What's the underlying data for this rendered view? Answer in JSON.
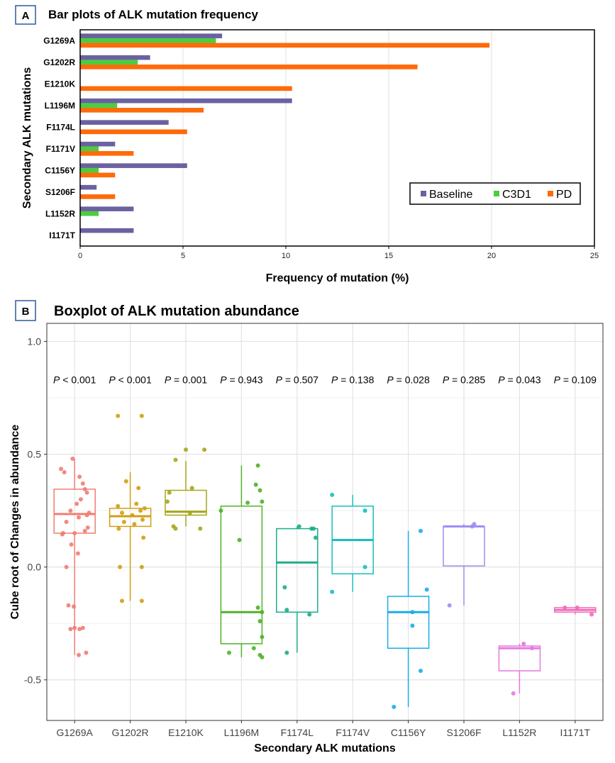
{
  "panel_a": {
    "badge": "A",
    "title": "Bar plots of ALK mutation frequency"
  },
  "panel_b": {
    "badge": "B",
    "title": "Boxplot of ALK mutation abundance"
  },
  "colors": {
    "baseline": "#6a62a0",
    "c3d1": "#4ccc40",
    "pd": "#ff6a0a",
    "badge_border": "#2c5a9e",
    "grid": "#e5e5e5",
    "panel_bg": "#ffffff"
  },
  "chart_data": [
    {
      "type": "bar",
      "orientation": "horizontal",
      "title": "Bar plots of ALK mutation frequency",
      "xlabel": "Frequency of mutation (%)",
      "ylabel": "Secondary ALK mutations",
      "xlim": [
        0,
        25
      ],
      "xticks": [
        0,
        5,
        10,
        15,
        20,
        25
      ],
      "grid": true,
      "legend_position": "bottom-right",
      "categories": [
        "G1269A",
        "G1202R",
        "E1210K",
        "L1196M",
        "F1174L",
        "F1171V",
        "C1156Y",
        "S1206F",
        "L1152R",
        "I1171T"
      ],
      "series": [
        {
          "name": "Baseline",
          "color": "#6a62a0",
          "values": [
            6.9,
            3.4,
            0,
            10.3,
            4.3,
            1.7,
            5.2,
            0.8,
            2.6,
            2.6
          ]
        },
        {
          "name": "C3D1",
          "color": "#4ccc40",
          "values": [
            6.6,
            2.8,
            0,
            1.8,
            0,
            0.9,
            0.9,
            0,
            0.9,
            0
          ]
        },
        {
          "name": "PD",
          "color": "#ff6a0a",
          "values": [
            19.9,
            16.4,
            10.3,
            6.0,
            5.2,
            2.6,
            1.7,
            1.7,
            0,
            0
          ]
        }
      ]
    },
    {
      "type": "box",
      "title": "Boxplot of ALK mutation abundance",
      "xlabel": "Secondary ALK mutations",
      "ylabel": "Cube root of Changes in abundance",
      "ylim": [
        -0.68,
        1.08
      ],
      "yticks": [
        -0.5,
        0.0,
        0.5,
        1.0
      ],
      "ytick_labels": [
        "-0.5",
        "0.0",
        "0.5",
        "1.0"
      ],
      "grid": true,
      "categories": [
        "G1269A",
        "G1202R",
        "E1210K",
        "L1196M",
        "F1174L",
        "F1174V",
        "C1156Y",
        "S1206F",
        "L1152R",
        "I1171T"
      ],
      "p_values": [
        "P < 0.001",
        "P < 0.001",
        "P = 0.001",
        "P = 0.943",
        "P = 0.507",
        "P = 0.138",
        "P = 0.028",
        "P = 0.285",
        "P = 0.043",
        "P = 0.109"
      ],
      "boxes": [
        {
          "name": "G1269A",
          "color": "#f07d74",
          "min": -0.39,
          "q1": 0.15,
          "median": 0.235,
          "q3": 0.345,
          "max": 0.48,
          "points": [
            [
              -0.33,
              0.435
            ],
            [
              -0.25,
              0.42
            ],
            [
              -0.28,
              0.15
            ],
            [
              -0.3,
              0.145
            ],
            [
              -0.05,
              0.48
            ],
            [
              0.12,
              0.4
            ],
            [
              0.2,
              0.37
            ],
            [
              0.25,
              0.345
            ],
            [
              0.3,
              0.33
            ],
            [
              0.15,
              0.3
            ],
            [
              0.05,
              0.28
            ],
            [
              -0.1,
              0.25
            ],
            [
              0.35,
              0.24
            ],
            [
              0.3,
              0.23
            ],
            [
              0.1,
              0.22
            ],
            [
              -0.2,
              0.2
            ],
            [
              0.32,
              0.175
            ],
            [
              0.25,
              0.16
            ],
            [
              0.0,
              0.15
            ],
            [
              -0.08,
              0.1
            ],
            [
              0.08,
              0.06
            ],
            [
              -0.15,
              -0.17
            ],
            [
              -0.02,
              -0.175
            ],
            [
              -0.1,
              -0.275
            ],
            [
              0.0,
              -0.27
            ],
            [
              0.12,
              -0.275
            ],
            [
              0.2,
              -0.27
            ],
            [
              -0.2,
              0.0
            ],
            [
              0.28,
              -0.38
            ],
            [
              0.1,
              -0.39
            ]
          ]
        },
        {
          "name": "G1202R",
          "color": "#d19f12",
          "min": -0.15,
          "q1": 0.18,
          "median": 0.225,
          "q3": 0.26,
          "max": 0.42,
          "points": [
            [
              -0.3,
              0.67
            ],
            [
              0.28,
              0.67
            ],
            [
              -0.1,
              0.38
            ],
            [
              0.2,
              0.35
            ],
            [
              -0.3,
              0.27
            ],
            [
              0.15,
              0.28
            ],
            [
              0.35,
              0.26
            ],
            [
              0.25,
              0.25
            ],
            [
              -0.2,
              0.24
            ],
            [
              0.05,
              0.23
            ],
            [
              0.3,
              0.21
            ],
            [
              -0.15,
              0.2
            ],
            [
              0.1,
              0.19
            ],
            [
              -0.28,
              0.17
            ],
            [
              0.32,
              0.13
            ],
            [
              0.28,
              0.0
            ],
            [
              -0.25,
              0.0
            ],
            [
              -0.2,
              -0.15
            ],
            [
              0.28,
              -0.15
            ]
          ]
        },
        {
          "name": "E1210K",
          "color": "#a6a619",
          "min": 0.18,
          "q1": 0.23,
          "median": 0.245,
          "q3": 0.34,
          "max": 0.47,
          "points": [
            [
              0.0,
              0.52
            ],
            [
              0.45,
              0.52
            ],
            [
              -0.25,
              0.475
            ],
            [
              -0.4,
              0.33
            ],
            [
              0.15,
              0.35
            ],
            [
              0.35,
              0.17
            ],
            [
              -0.3,
              0.18
            ],
            [
              -0.25,
              0.17
            ],
            [
              0.1,
              0.24
            ],
            [
              -0.45,
              0.29
            ]
          ]
        },
        {
          "name": "L1196M",
          "color": "#4fb327",
          "min": -0.4,
          "q1": -0.34,
          "median": -0.2,
          "q3": 0.27,
          "max": 0.45,
          "points": [
            [
              0.4,
              0.45
            ],
            [
              0.35,
              0.365
            ],
            [
              0.15,
              0.285
            ],
            [
              0.5,
              0.29
            ],
            [
              0.45,
              0.34
            ],
            [
              -0.5,
              0.25
            ],
            [
              -0.05,
              0.12
            ],
            [
              0.4,
              -0.18
            ],
            [
              0.5,
              -0.2
            ],
            [
              0.45,
              -0.24
            ],
            [
              0.5,
              -0.31
            ],
            [
              0.3,
              -0.36
            ],
            [
              0.45,
              -0.39
            ],
            [
              0.5,
              -0.4
            ],
            [
              -0.3,
              -0.38
            ]
          ]
        },
        {
          "name": "F1174L",
          "color": "#1cad8a",
          "min": -0.38,
          "q1": -0.2,
          "median": 0.02,
          "q3": 0.17,
          "max": 0.18,
          "points": [
            [
              -0.3,
              -0.09
            ],
            [
              -0.25,
              -0.19
            ],
            [
              0.4,
              0.17
            ],
            [
              0.45,
              0.13
            ],
            [
              0.3,
              -0.21
            ],
            [
              -0.25,
              -0.38
            ],
            [
              0.35,
              0.17
            ],
            [
              0.05,
              0.18
            ]
          ]
        },
        {
          "name": "F1174V",
          "color": "#17bfbf",
          "min": -0.11,
          "q1": -0.03,
          "median": 0.12,
          "q3": 0.27,
          "max": 0.32,
          "points": [
            [
              -0.5,
              0.32
            ],
            [
              0.3,
              0.25
            ],
            [
              0.3,
              0.0
            ],
            [
              -0.5,
              -0.11
            ]
          ]
        },
        {
          "name": "C1156Y",
          "color": "#19aee6",
          "min": -0.62,
          "q1": -0.36,
          "median": -0.2,
          "q3": -0.13,
          "max": 0.16,
          "points": [
            [
              0.3,
              0.16
            ],
            [
              0.45,
              -0.1
            ],
            [
              0.1,
              -0.2
            ],
            [
              0.1,
              -0.26
            ],
            [
              0.3,
              -0.46
            ],
            [
              -0.35,
              -0.62
            ]
          ]
        },
        {
          "name": "S1206F",
          "color": "#9b8ef2",
          "min": -0.17,
          "q1": 0.005,
          "median": 0.18,
          "q3": 0.18,
          "max": 0.19,
          "points": [
            [
              -0.35,
              -0.17
            ],
            [
              0.2,
              0.18
            ],
            [
              0.25,
              0.19
            ]
          ]
        },
        {
          "name": "L1152R",
          "color": "#e678e0",
          "min": -0.56,
          "q1": -0.46,
          "median": -0.36,
          "q3": -0.35,
          "max": -0.34,
          "points": [
            [
              0.1,
              -0.34
            ],
            [
              0.3,
              -0.36
            ],
            [
              -0.15,
              -0.56
            ]
          ]
        },
        {
          "name": "I1171T",
          "color": "#f26bbb",
          "min": -0.21,
          "q1": -0.2,
          "median": -0.19,
          "q3": -0.18,
          "max": -0.18,
          "points": [
            [
              -0.25,
              -0.18
            ],
            [
              0.05,
              -0.18
            ],
            [
              0.4,
              -0.21
            ]
          ]
        }
      ]
    }
  ]
}
